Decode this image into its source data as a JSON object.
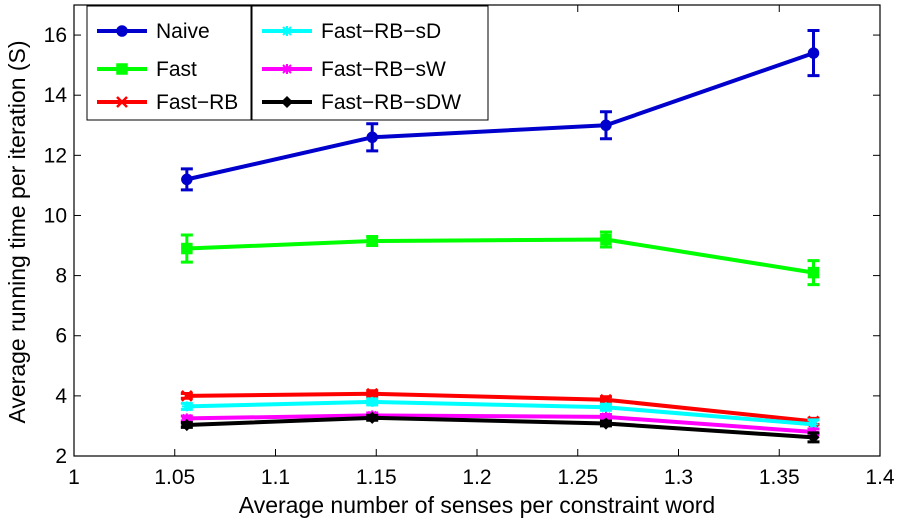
{
  "chart_data": {
    "type": "line",
    "xlabel": "Average number of senses per constraint word",
    "ylabel": "Average running time per iteration (S)",
    "xlim": [
      1,
      1.4
    ],
    "ylim": [
      2,
      17
    ],
    "x_ticks": [
      1,
      1.05,
      1.1,
      1.15,
      1.2,
      1.25,
      1.3,
      1.35,
      1.4
    ],
    "x_tick_labels": [
      "1",
      "1.05",
      "1.1",
      "1.15",
      "1.2",
      "1.25",
      "1.3",
      "1.35",
      "1.4"
    ],
    "y_ticks": [
      2,
      4,
      6,
      8,
      10,
      12,
      14,
      16
    ],
    "y_tick_labels": [
      "2",
      "4",
      "6",
      "8",
      "10",
      "12",
      "14",
      "16"
    ],
    "grid": false,
    "legend_placement": "top-left",
    "x": [
      1.056,
      1.148,
      1.264,
      1.367
    ],
    "series": [
      {
        "name": "Naive",
        "color": "#0000cc",
        "marker": "circle",
        "values": [
          11.2,
          12.6,
          13.0,
          15.4
        ],
        "errors": [
          0.35,
          0.45,
          0.45,
          0.75
        ]
      },
      {
        "name": "Fast",
        "color": "#00ff00",
        "marker": "square",
        "values": [
          8.9,
          9.15,
          9.2,
          8.1
        ],
        "errors": [
          0.45,
          0.15,
          0.25,
          0.4
        ]
      },
      {
        "name": "Fast−RB",
        "color": "#ff0000",
        "marker": "x",
        "values": [
          4.0,
          4.07,
          3.87,
          3.15
        ],
        "errors": [
          0.08,
          0.1,
          0.1,
          0.1
        ]
      },
      {
        "name": "Fast−RB−sD",
        "color": "#00ffff",
        "marker": "star",
        "values": [
          3.65,
          3.8,
          3.62,
          3.05
        ],
        "errors": [
          0.1,
          0.1,
          0.1,
          0.15
        ]
      },
      {
        "name": "Fast−RB−sW",
        "color": "#ff00ff",
        "marker": "star",
        "values": [
          3.25,
          3.35,
          3.3,
          2.8
        ],
        "errors": [
          0.08,
          0.08,
          0.08,
          0.1
        ]
      },
      {
        "name": "Fast−RB−sDW",
        "color": "#000000",
        "marker": "diamond",
        "values": [
          3.03,
          3.27,
          3.08,
          2.62
        ],
        "errors": [
          0.08,
          0.08,
          0.08,
          0.15
        ]
      }
    ]
  }
}
